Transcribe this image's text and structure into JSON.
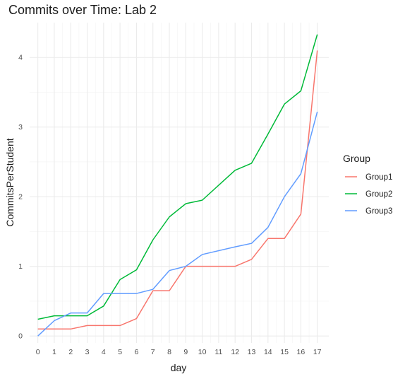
{
  "chart_data": {
    "type": "line",
    "title": "Commits over Time: Lab 2",
    "xlabel": "day",
    "ylabel": "CommitsPerStudent",
    "xlim": [
      -0.5,
      17.7
    ],
    "ylim": [
      -0.1,
      4.5
    ],
    "x_ticks": [
      0,
      1,
      2,
      3,
      4,
      5,
      6,
      7,
      8,
      9,
      10,
      11,
      12,
      13,
      14,
      15,
      16,
      17
    ],
    "y_ticks": [
      0,
      1,
      2,
      3,
      4
    ],
    "x": [
      0,
      1,
      2,
      3,
      4,
      5,
      6,
      7,
      8,
      9,
      10,
      12,
      13,
      14,
      15,
      16,
      17
    ],
    "legend_title": "Group",
    "legend_position": "right",
    "grid": true,
    "series": [
      {
        "name": "Group1",
        "color": "#F8766D",
        "values": [
          0.1,
          0.1,
          0.1,
          0.15,
          0.15,
          0.15,
          0.25,
          0.65,
          0.65,
          1.0,
          1.0,
          1.0,
          1.1,
          1.4,
          1.4,
          1.75,
          4.1
        ]
      },
      {
        "name": "Group2",
        "color": "#00BA38",
        "values": [
          0.24,
          0.29,
          0.29,
          0.29,
          0.43,
          0.81,
          0.95,
          1.38,
          1.71,
          1.9,
          1.95,
          2.38,
          2.48,
          2.9,
          3.33,
          3.52,
          4.33
        ]
      },
      {
        "name": "Group3",
        "color": "#619CFF",
        "values": [
          0.0,
          0.22,
          0.33,
          0.33,
          0.61,
          0.61,
          0.61,
          0.67,
          0.94,
          1.0,
          1.17,
          1.28,
          1.33,
          1.56,
          2.0,
          2.33,
          3.22
        ]
      }
    ]
  }
}
